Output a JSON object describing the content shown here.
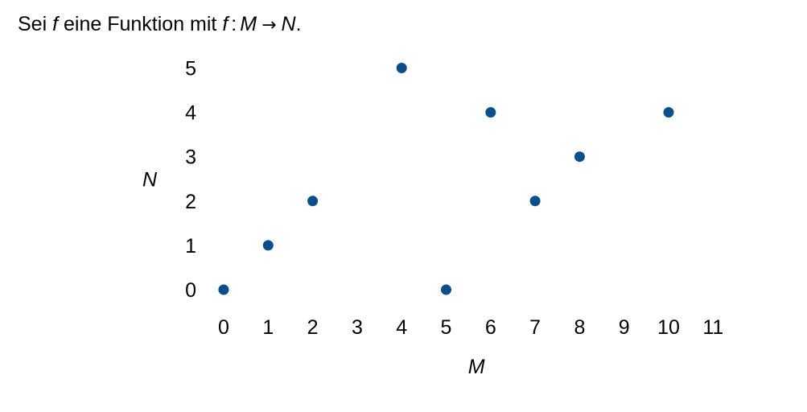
{
  "intro": {
    "prefix": "Sei",
    "f1": "f",
    "middle": "eine Funktion mit",
    "f2": "f",
    "colon": ":",
    "domain": "M",
    "arrow": "→",
    "codomain": "N",
    "period": "."
  },
  "chart_data": {
    "type": "scatter",
    "xlabel": "M",
    "ylabel": "N",
    "x_ticks": [
      0,
      1,
      2,
      3,
      4,
      5,
      6,
      7,
      8,
      9,
      10,
      11
    ],
    "y_ticks": [
      0,
      1,
      2,
      3,
      4,
      5
    ],
    "xlim": [
      0,
      11
    ],
    "ylim": [
      0,
      5
    ],
    "grid": false,
    "marker_color": "#0a4f8c",
    "points": [
      {
        "x": 0,
        "y": 0
      },
      {
        "x": 1,
        "y": 1
      },
      {
        "x": 2,
        "y": 2
      },
      {
        "x": 4,
        "y": 5
      },
      {
        "x": 5,
        "y": 0
      },
      {
        "x": 6,
        "y": 4
      },
      {
        "x": 7,
        "y": 2
      },
      {
        "x": 8,
        "y": 3
      },
      {
        "x": 10,
        "y": 4
      }
    ]
  }
}
